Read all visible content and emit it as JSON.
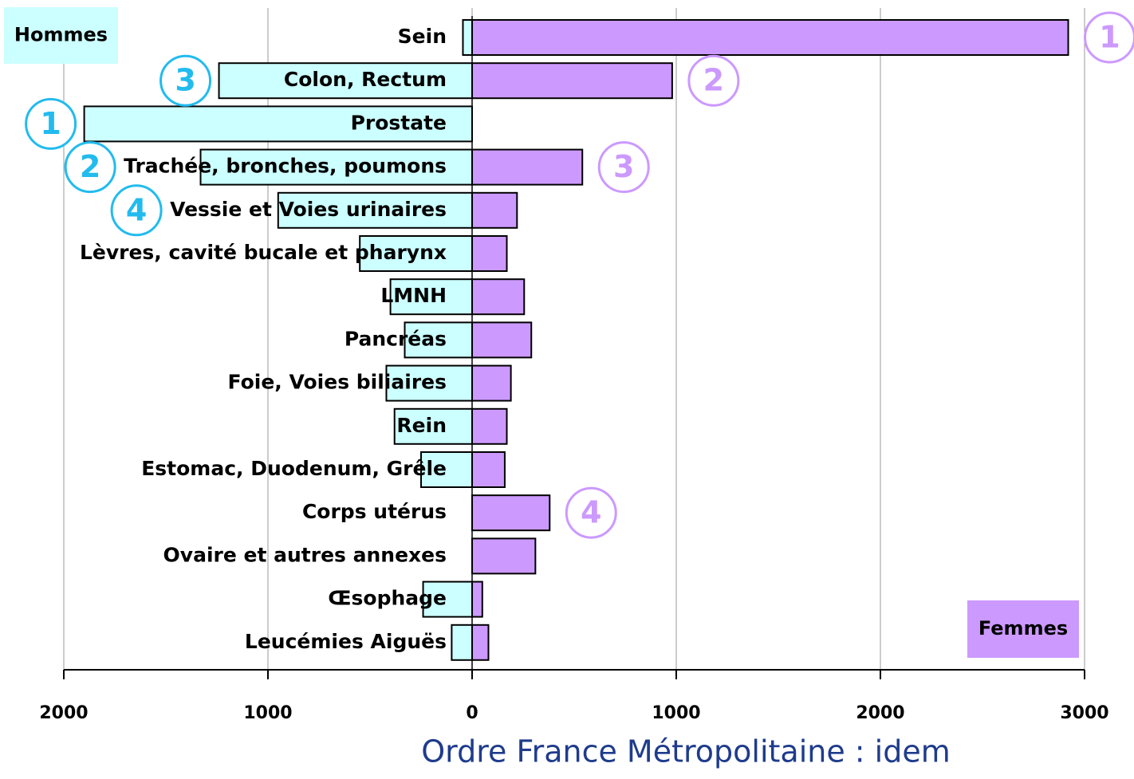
{
  "chart_data": {
    "type": "butterfly-bar",
    "caption": "Ordre France Métropolitaine : idem",
    "categories": [
      "Sein",
      "Colon, Rectum",
      "Prostate",
      "Trachée, bronches, poumons",
      "Vessie et Voies urinaires",
      "Lèvres, cavité bucale et pharynx",
      "LMNH",
      "Pancréas",
      "Foie, Voies biliaires",
      "Rein",
      "Estomac, Duodenum, Grêle",
      "Corps utérus",
      "Ovaire et autres annexes",
      "Œsophage",
      "Leucémies Aiguës"
    ],
    "series": [
      {
        "name": "Hommes",
        "color": "#ccffff",
        "rank_color": "#22bbee",
        "values": [
          -45,
          -1240,
          -1900,
          -1330,
          -950,
          -550,
          -400,
          -330,
          -420,
          -380,
          -250,
          null,
          null,
          -240,
          -100
        ],
        "ranks": [
          null,
          3,
          1,
          2,
          4,
          null,
          null,
          null,
          null,
          null,
          null,
          null,
          null,
          null,
          null
        ]
      },
      {
        "name": "Femmes",
        "color": "#cc99ff",
        "rank_color": "#cc99ff",
        "values": [
          2920,
          980,
          null,
          540,
          220,
          170,
          255,
          290,
          190,
          170,
          160,
          380,
          310,
          50,
          80
        ],
        "ranks": [
          1,
          2,
          null,
          3,
          null,
          null,
          null,
          null,
          null,
          null,
          null,
          4,
          null,
          null,
          null
        ]
      }
    ],
    "xlim": [
      -2000,
      3000
    ],
    "xticks": [
      {
        "value": -2000,
        "label": "2000"
      },
      {
        "value": -1000,
        "label": "1000"
      },
      0,
      1000,
      2000,
      3000
    ],
    "grid": true
  }
}
